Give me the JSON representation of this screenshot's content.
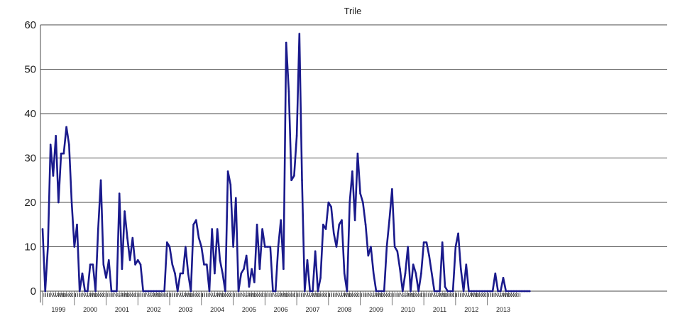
{
  "chart_data": {
    "type": "line",
    "title": "Trile",
    "xlabel": "",
    "ylabel": "",
    "ylim": [
      0,
      60
    ],
    "yticks": [
      0,
      10,
      20,
      30,
      40,
      50,
      60
    ],
    "grid": "horizontal",
    "legend": "none",
    "line_color": "#1a1a8c",
    "year_labels": [
      "1999",
      "2000",
      "2001",
      "2002",
      "2003",
      "2004",
      "2005",
      "2006",
      "2007",
      "2008",
      "2009",
      "2010",
      "2011",
      "2012",
      "2013"
    ],
    "month_labels": [
      "I",
      "II",
      "III",
      "IV",
      "V",
      "VI",
      "VII",
      "VIII",
      "IX",
      "X",
      "XI",
      "XII"
    ],
    "start_month": "1999-01",
    "series": [
      {
        "values": [
          14,
          0,
          10,
          33,
          26,
          35,
          20,
          31,
          31,
          37,
          33,
          20,
          10,
          15,
          0,
          4,
          0,
          0,
          6,
          6,
          0,
          14,
          25,
          6,
          3,
          7,
          0,
          0,
          0,
          22,
          5,
          18,
          12,
          7,
          12,
          6,
          7,
          6,
          0,
          0,
          0,
          0,
          0,
          0,
          0,
          0,
          0,
          11,
          10,
          6,
          4,
          0,
          4,
          4,
          10,
          4,
          0,
          15,
          16,
          12,
          10,
          6,
          6,
          0,
          14,
          4,
          14,
          7,
          4,
          0,
          27,
          24,
          10,
          21,
          0,
          4,
          5,
          8,
          1,
          5,
          2,
          15,
          5,
          14,
          10,
          10,
          10,
          0,
          0,
          10,
          16,
          5,
          56,
          45,
          25,
          26,
          35,
          58,
          25,
          0,
          7,
          0,
          0,
          9,
          0,
          3,
          15,
          14,
          20,
          19,
          13,
          10,
          15,
          16,
          4,
          0,
          20,
          27,
          16,
          31,
          22,
          20,
          15,
          8,
          10,
          4,
          0,
          0,
          0,
          0,
          10,
          16,
          23,
          10,
          9,
          5,
          0,
          4,
          10,
          0,
          6,
          4,
          0,
          4,
          11,
          11,
          8,
          4,
          0,
          0,
          0,
          11,
          1,
          0,
          0,
          0,
          10,
          13,
          5,
          0,
          6,
          0,
          0,
          0,
          0,
          0,
          0,
          0,
          0,
          0,
          0,
          4,
          0,
          0,
          3,
          0,
          0,
          0,
          0,
          0,
          0,
          0,
          0,
          0,
          0
        ]
      }
    ]
  }
}
